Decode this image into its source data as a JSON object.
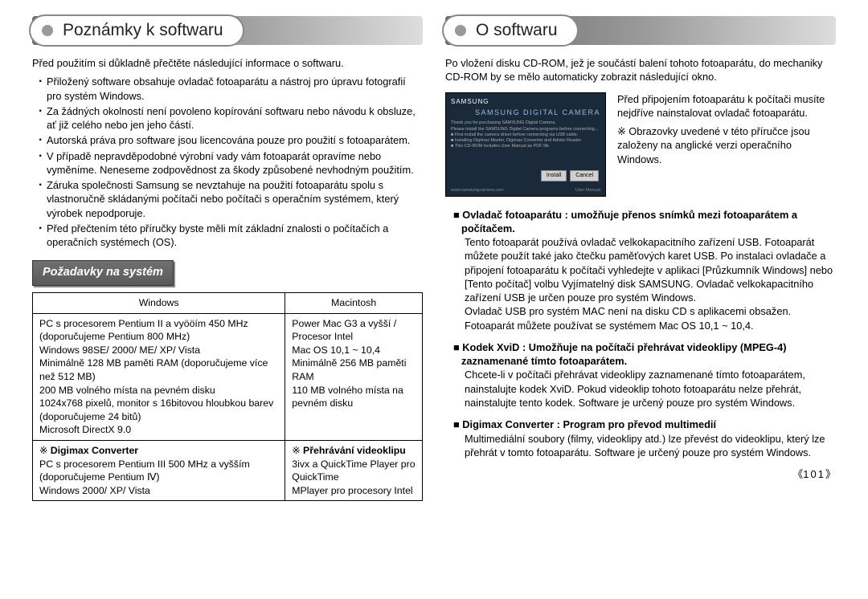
{
  "page_number": "101",
  "left": {
    "heading": "Poznámky k softwaru",
    "intro": "Před použitím si důkladně přečtěte následující informace o softwaru.",
    "bullets": [
      "Přiložený software obsahuje ovladač fotoaparátu a nástroj pro úpravu fotografií pro systém Windows.",
      "Za žádných okolností není povoleno kopírování softwaru nebo návodu k obsluze, ať již celého nebo jen jeho částí.",
      "Autorská práva pro software jsou licencována pouze pro použití s fotoaparátem.",
      "V případě nepravděpodobné výrobní vady vám fotoaparát opravíme nebo vyměníme. Neneseme zodpovědnost za škody způsobené nevhodným použitím.",
      "Záruka společnosti Samsung se nevztahuje na použití fotoaparátu spolu s vlastnoručně skládanými počítači nebo počítači s operačním systémem, který výrobek nepodporuje.",
      "Před přečtením této příručky byste měli mít základní znalosti o počítačích a operačních systémech (OS)."
    ],
    "subheader": "Požadavky na systém",
    "table": {
      "headers": [
        "Windows",
        "Macintosh"
      ],
      "row1": [
        "PC s procesorem Pentium II a vyööím 450 MHz (doporučujeme Pentium 800 MHz)\nWindows 98SE/ 2000/ ME/ XP/ Vista\nMinimálně 128 MB paměti RAM (doporučujeme více než 512 MB)\n200 MB volného místa na pevném disku\n1024x768 pixelů, monitor s 16bitovou hloubkou barev\n(doporučujeme 24 bitů)\nMicrosoft DirectX 9.0",
        "Power Mac G3 a vyšší / Procesor Intel\nMac OS 10,1 ~ 10,4\nMinimálně 256 MB paměti RAM\n110 MB volného místa na pevném disku"
      ],
      "row2_labels": [
        "Digimax Converter",
        "Přehrávání videoklipu"
      ],
      "row2": [
        "PC s procesorem Pentium III 500 MHz a vyšším\n(doporučujeme Pentium Ⅳ)\nWindows 2000/ XP/ Vista",
        "3ivx a QuickTime Player pro QuickTime\nMPlayer pro procesory Intel"
      ]
    }
  },
  "right": {
    "heading": "O softwaru",
    "intro": "Po vložení disku CD-ROM, jež je součástí balení tohoto fotoaparátu, do mechaniky CD-ROM by se mělo automaticky zobrazit následující okno.",
    "installer": {
      "brand": "SAMSUNG",
      "title": "SAMSUNG DIGITAL CAMERA",
      "subtitle": "INSTALLER",
      "btn_install": "Install",
      "btn_cancel": "Cancel",
      "footer_left": "www.samsungcamera.com",
      "footer_right": "User Manual"
    },
    "note1": "Před připojením fotoaparátu k počítači musíte nejdříve nainstalovat ovladač fotoaparátu.",
    "note2": "Obrazovky uvedené v této příručce jsou založeny na anglické verzi operačního Windows.",
    "items": [
      {
        "head": "Ovladač fotoaparátu : umožňuje přenos snímků mezi fotoaparátem a počítačem.",
        "body": "Tento fotoaparát používá ovladač velkokapacitního zařízení USB. Fotoaparát můžete použít také jako čtečku paměťových karet USB. Po instalaci ovladače a připojení fotoaparátu k počítači vyhledejte v aplikaci [Průzkumník Windows] nebo [Tento počítač] volbu Vyjímatelný disk SAMSUNG. Ovladač velkokapacitního zařízení USB je určen pouze pro systém Windows.\nOvladač USB pro systém MAC není na disku CD s aplikacemi obsažen. Fotoaparát můžete používat se systémem Mac OS 10,1 ~ 10,4."
      },
      {
        "head": "Kodek XviD : Umožňuje na počítači přehrávat videoklipy (MPEG-4) zaznamenané tímto fotoaparátem.",
        "body": "Chcete-li v počítači přehrávat videoklipy zaznamenané tímto fotoaparátem, nainstalujte kodek XviD. Pokud videoklip tohoto fotoaparátu nelze přehrát, nainstalujte tento kodek. Software je určený pouze pro systém Windows."
      },
      {
        "head": "Digimax Converter : Program pro převod multimedií",
        "body": "Multimediální soubory (filmy, videoklipy atd.) lze převést do videoklipu, který lze přehrát v tomto fotoaparátu. Software je určený pouze pro systém Windows."
      }
    ]
  }
}
